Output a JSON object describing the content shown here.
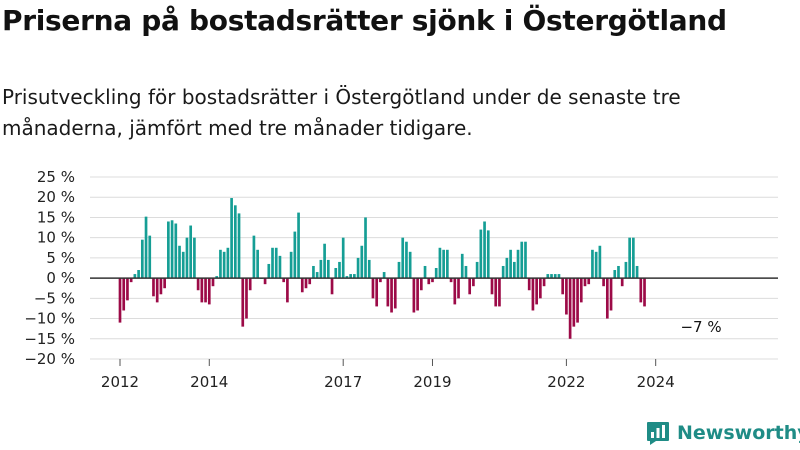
{
  "title": "Priserna på bostadsrätter sjönk i Östergötland",
  "subtitle": "Prisutveckling för bostadsrätter i Östergötland under de senaste tre månaderna, jämfört med tre månader tidigare.",
  "brand": "Newsworthy",
  "colors": {
    "positive": "#159e95",
    "negative": "#9c0a47",
    "grid": "#dcdcdc",
    "zero": "#333333",
    "text": "#222222",
    "brand": "#1f8c86"
  },
  "chart_data": {
    "type": "bar",
    "y_unit": "%",
    "ylim": [
      -20,
      25
    ],
    "yticks": [
      25,
      20,
      15,
      10,
      5,
      0,
      -5,
      -10,
      -15,
      -20
    ],
    "ytick_labels": [
      "25 %",
      "20 %",
      "15 %",
      "10 %",
      "5 %",
      "0 %",
      "−5 %",
      "−10 %",
      "−15 %",
      "−20 %"
    ],
    "xtick_labels": [
      "2012",
      "2014",
      "2017",
      "2019",
      "2022",
      "2024"
    ],
    "xtick_positions": [
      "2012-01",
      "2014-01",
      "2017-01",
      "2019-01",
      "2022-01",
      "2024-01"
    ],
    "x_start": "2012-01",
    "x_end": "2025-02",
    "grid": true,
    "annotation": {
      "text": "−7 %",
      "x": "2025-02"
    },
    "values": [
      -11,
      -8,
      -5.5,
      -1,
      1,
      2,
      9.5,
      15.2,
      10.5,
      -4.5,
      -6,
      -4,
      -2.5,
      14,
      14.3,
      13.5,
      8,
      6.5,
      10,
      13,
      10,
      -3,
      -6,
      -6,
      -6.5,
      -2,
      0.5,
      7,
      6.5,
      7.5,
      19.8,
      18,
      16,
      -12,
      -10,
      -3,
      10.5,
      7,
      0,
      -1.5,
      3.5,
      7.5,
      7.5,
      5.5,
      -1,
      -6,
      6.5,
      11.5,
      16.2,
      -3.5,
      -2.5,
      -1.5,
      3,
      1.5,
      4.5,
      8.5,
      4.5,
      -4,
      2.5,
      4,
      10,
      0.5,
      1,
      1,
      5,
      8,
      15,
      4.5,
      -5,
      -7,
      -1,
      1.5,
      -7,
      -8.5,
      -7.5,
      4,
      10,
      9,
      6.5,
      -8.5,
      -8,
      -3,
      3,
      -1.5,
      -1,
      2.5,
      7.5,
      7,
      7,
      -1,
      -6.5,
      -5,
      6,
      3,
      -4,
      -2,
      4,
      12,
      14,
      11.8,
      -4,
      -7,
      -7,
      3,
      5,
      7,
      4,
      7,
      9,
      9,
      -3,
      -8,
      -6.5,
      -5,
      -2,
      1,
      1,
      1,
      1,
      -4,
      -9,
      -15,
      -12,
      -11,
      -6,
      -2,
      -1.5,
      7,
      6.5,
      8,
      -2,
      -10,
      -8,
      2,
      3,
      -2,
      4,
      10,
      10,
      3,
      -6,
      -7
    ]
  }
}
